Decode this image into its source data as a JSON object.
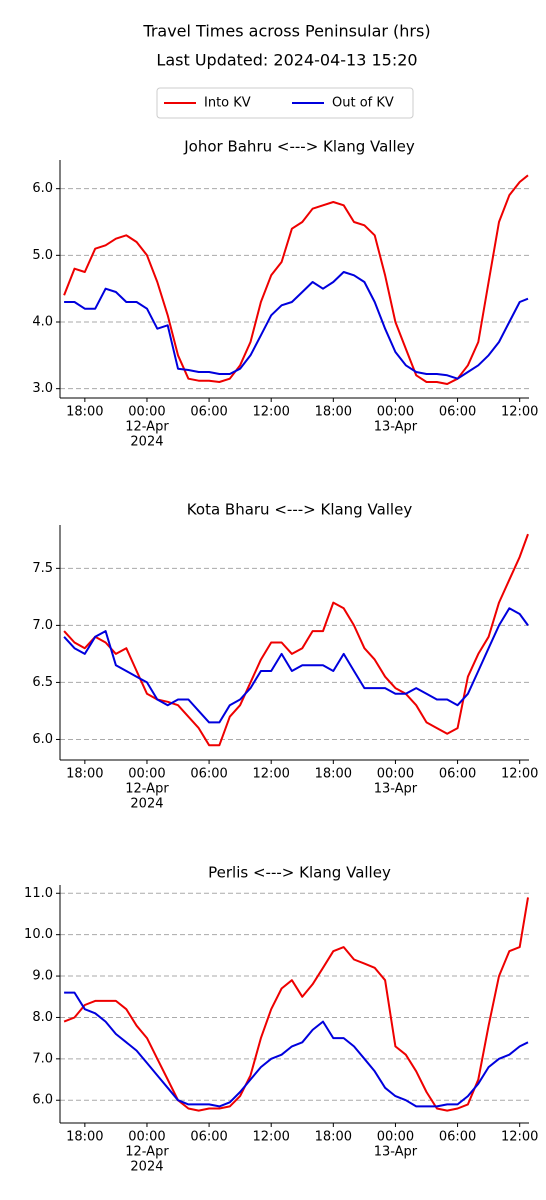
{
  "title": "Travel Times across Peninsular (hrs)",
  "subtitle": "Last Updated: 2024-04-13 15:20",
  "chart_data": [
    {
      "type": "line",
      "title": "Johor Bahru <---> Klang Valley",
      "x": [
        -8,
        -7,
        -6,
        -5,
        -4,
        -3,
        -2,
        -1,
        0,
        1,
        2,
        3,
        4,
        5,
        6,
        7,
        8,
        9,
        10,
        11,
        12,
        13,
        14,
        15,
        16,
        17,
        18,
        19,
        20,
        21,
        22,
        23,
        24,
        25,
        26,
        27,
        28,
        29,
        30,
        31,
        32,
        33,
        34,
        35,
        36,
        36.8
      ],
      "series": [
        {
          "name": "Into KV",
          "color": "#ee0000",
          "values": [
            4.4,
            4.8,
            4.75,
            5.1,
            5.15,
            5.25,
            5.3,
            5.2,
            5.0,
            4.6,
            4.1,
            3.5,
            3.15,
            3.12,
            3.12,
            3.1,
            3.15,
            3.35,
            3.7,
            4.3,
            4.7,
            4.9,
            5.4,
            5.5,
            5.7,
            5.75,
            5.8,
            5.75,
            5.5,
            5.45,
            5.3,
            4.7,
            4.0,
            3.6,
            3.2,
            3.1,
            3.1,
            3.07,
            3.15,
            3.35,
            3.7,
            4.6,
            5.5,
            5.9,
            6.1,
            6.2
          ]
        },
        {
          "name": "Out of KV",
          "color": "#0000dd",
          "values": [
            4.3,
            4.3,
            4.2,
            4.2,
            4.5,
            4.45,
            4.3,
            4.3,
            4.2,
            3.9,
            3.95,
            3.3,
            3.28,
            3.25,
            3.25,
            3.22,
            3.22,
            3.3,
            3.5,
            3.8,
            4.1,
            4.25,
            4.3,
            4.45,
            4.6,
            4.5,
            4.6,
            4.75,
            4.7,
            4.6,
            4.3,
            3.9,
            3.55,
            3.35,
            3.25,
            3.22,
            3.22,
            3.2,
            3.15,
            3.25,
            3.35,
            3.5,
            3.7,
            4.0,
            4.3,
            4.35
          ]
        }
      ],
      "xlim": [
        -8.4,
        36.9
      ],
      "ylim": [
        2.86,
        6.43
      ],
      "yticks": [
        {
          "value": 3,
          "label": "3.0"
        },
        {
          "value": 4,
          "label": "4.0"
        },
        {
          "value": 5,
          "label": "5.0"
        },
        {
          "value": 6,
          "label": "6.0"
        }
      ],
      "xticks": [
        {
          "value": -6,
          "label": "18:00"
        },
        {
          "value": 0,
          "label": [
            "00:00",
            "12-Apr",
            "2024"
          ]
        },
        {
          "value": 6,
          "label": "06:00"
        },
        {
          "value": 12,
          "label": "12:00"
        },
        {
          "value": 18,
          "label": "18:00"
        },
        {
          "value": 24,
          "label": [
            "00:00",
            "13-Apr"
          ]
        },
        {
          "value": 30,
          "label": "06:00"
        },
        {
          "value": 36,
          "label": "12:00"
        }
      ],
      "grid": true
    },
    {
      "type": "line",
      "title": "Kota Bharu <---> Klang Valley",
      "x": [
        -8,
        -7,
        -6,
        -5,
        -4,
        -3,
        -2,
        -1,
        0,
        1,
        2,
        3,
        4,
        5,
        6,
        7,
        8,
        9,
        10,
        11,
        12,
        13,
        14,
        15,
        16,
        17,
        18,
        19,
        20,
        21,
        22,
        23,
        24,
        25,
        26,
        27,
        28,
        29,
        30,
        31,
        32,
        33,
        34,
        35,
        36,
        36.8
      ],
      "series": [
        {
          "name": "Into KV",
          "color": "#ee0000",
          "values": [
            6.95,
            6.85,
            6.8,
            6.9,
            6.85,
            6.75,
            6.8,
            6.6,
            6.4,
            6.35,
            6.33,
            6.3,
            6.2,
            6.1,
            5.95,
            5.95,
            6.2,
            6.3,
            6.5,
            6.7,
            6.85,
            6.85,
            6.75,
            6.8,
            6.95,
            6.95,
            7.2,
            7.15,
            7.0,
            6.8,
            6.7,
            6.55,
            6.45,
            6.4,
            6.3,
            6.15,
            6.1,
            6.05,
            6.1,
            6.55,
            6.75,
            6.9,
            7.2,
            7.4,
            7.6,
            7.8
          ]
        },
        {
          "name": "Out of KV",
          "color": "#0000dd",
          "values": [
            6.9,
            6.8,
            6.75,
            6.9,
            6.95,
            6.65,
            6.6,
            6.55,
            6.5,
            6.35,
            6.3,
            6.35,
            6.35,
            6.25,
            6.15,
            6.15,
            6.3,
            6.35,
            6.45,
            6.6,
            6.6,
            6.75,
            6.6,
            6.65,
            6.65,
            6.65,
            6.6,
            6.75,
            6.6,
            6.45,
            6.45,
            6.45,
            6.4,
            6.4,
            6.45,
            6.4,
            6.35,
            6.35,
            6.3,
            6.4,
            6.6,
            6.8,
            7.0,
            7.15,
            7.1,
            7.0
          ]
        }
      ],
      "xlim": [
        -8.4,
        36.9
      ],
      "ylim": [
        5.82,
        7.88
      ],
      "yticks": [
        {
          "value": 6,
          "label": "6.0"
        },
        6.5,
        {
          "value": 7,
          "label": "7.0"
        },
        7.5
      ],
      "xticks": [
        {
          "value": -6,
          "label": "18:00"
        },
        {
          "value": 0,
          "label": [
            "00:00",
            "12-Apr",
            "2024"
          ]
        },
        {
          "value": 6,
          "label": "06:00"
        },
        {
          "value": 12,
          "label": "12:00"
        },
        {
          "value": 18,
          "label": "18:00"
        },
        {
          "value": 24,
          "label": [
            "00:00",
            "13-Apr"
          ]
        },
        {
          "value": 30,
          "label": "06:00"
        },
        {
          "value": 36,
          "label": "12:00"
        }
      ],
      "grid": true
    },
    {
      "type": "line",
      "title": "Perlis <---> Klang Valley",
      "x": [
        -8,
        -7,
        -6,
        -5,
        -4,
        -3,
        -2,
        -1,
        0,
        1,
        2,
        3,
        4,
        5,
        6,
        7,
        8,
        9,
        10,
        11,
        12,
        13,
        14,
        15,
        16,
        17,
        18,
        19,
        20,
        21,
        22,
        23,
        24,
        25,
        26,
        27,
        28,
        29,
        30,
        31,
        32,
        33,
        34,
        35,
        36,
        36.8
      ],
      "series": [
        {
          "name": "Into KV",
          "color": "#ee0000",
          "values": [
            7.9,
            8.0,
            8.3,
            8.4,
            8.4,
            8.4,
            8.2,
            7.8,
            7.5,
            7.0,
            6.5,
            6.0,
            5.8,
            5.75,
            5.8,
            5.8,
            5.85,
            6.1,
            6.6,
            7.5,
            8.2,
            8.7,
            8.9,
            8.5,
            8.8,
            9.2,
            9.6,
            9.7,
            9.4,
            9.3,
            9.2,
            8.9,
            7.3,
            7.1,
            6.7,
            6.2,
            5.8,
            5.75,
            5.8,
            5.9,
            6.5,
            7.8,
            9.0,
            9.6,
            9.7,
            10.9
          ]
        },
        {
          "name": "Out of KV",
          "color": "#0000dd",
          "values": [
            8.6,
            8.6,
            8.2,
            8.1,
            7.9,
            7.6,
            7.4,
            7.2,
            6.9,
            6.6,
            6.3,
            6.0,
            5.9,
            5.9,
            5.9,
            5.85,
            5.95,
            6.2,
            6.5,
            6.8,
            7.0,
            7.1,
            7.3,
            7.4,
            7.7,
            7.9,
            7.5,
            7.5,
            7.3,
            7.0,
            6.7,
            6.3,
            6.1,
            6.0,
            5.85,
            5.85,
            5.85,
            5.9,
            5.9,
            6.1,
            6.4,
            6.8,
            7.0,
            7.1,
            7.3,
            7.4
          ]
        }
      ],
      "xlim": [
        -8.4,
        36.9
      ],
      "ylim": [
        5.45,
        11.2
      ],
      "yticks": [
        {
          "value": 6,
          "label": "6.0"
        },
        {
          "value": 7,
          "label": "7.0"
        },
        {
          "value": 8,
          "label": "8.0"
        },
        {
          "value": 9,
          "label": "9.0"
        },
        {
          "value": 10,
          "label": "10.0"
        },
        {
          "value": 11,
          "label": "11.0"
        }
      ],
      "xticks": [
        {
          "value": -6,
          "label": "18:00"
        },
        {
          "value": 0,
          "label": [
            "00:00",
            "12-Apr",
            "2024"
          ]
        },
        {
          "value": 6,
          "label": "06:00"
        },
        {
          "value": 12,
          "label": "12:00"
        },
        {
          "value": 18,
          "label": "18:00"
        },
        {
          "value": 24,
          "label": [
            "00:00",
            "13-Apr"
          ]
        },
        {
          "value": 30,
          "label": "06:00"
        },
        {
          "value": 36,
          "label": "12:00"
        }
      ],
      "grid": true
    }
  ]
}
